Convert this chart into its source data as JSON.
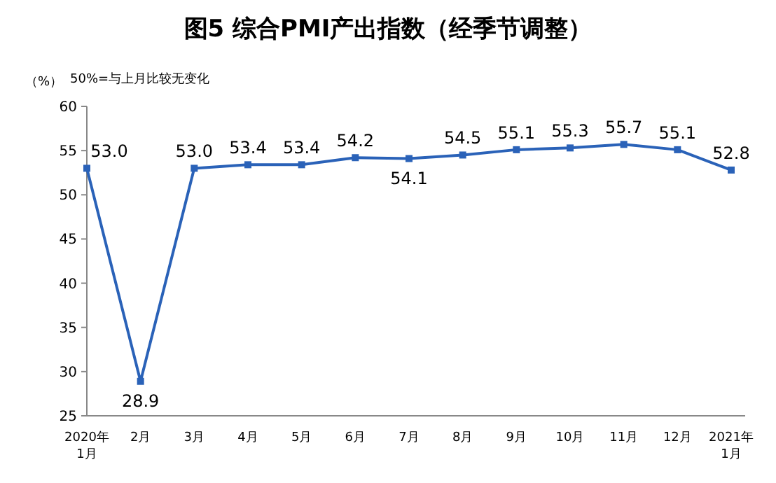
{
  "chart_data": {
    "type": "line",
    "title": "图5  综合PMI产出指数（经季节调整）",
    "ylabel": "（%）",
    "annotations": [
      "50%=与上月比较无变化"
    ],
    "categories": [
      "2020年\n1月",
      "2月",
      "3月",
      "4月",
      "5月",
      "6月",
      "7月",
      "8月",
      "9月",
      "10月",
      "11月",
      "12月",
      "2021年\n1月"
    ],
    "series": [
      {
        "color": "#2a62b8",
        "values": [
          53.0,
          28.9,
          53.0,
          53.4,
          53.4,
          54.2,
          54.1,
          54.5,
          55.1,
          55.3,
          55.7,
          55.1,
          52.8
        ],
        "value_labels": [
          "53.0",
          "28.9",
          "53.0",
          "53.4",
          "53.4",
          "54.2",
          "54.1",
          "54.5",
          "55.1",
          "55.3",
          "55.7",
          "55.1",
          "52.8"
        ]
      }
    ],
    "ylim": [
      25,
      60
    ],
    "yticks": [
      25,
      30,
      35,
      40,
      45,
      50,
      55,
      60
    ],
    "grid": false,
    "marker": "square",
    "line_style": "solid"
  }
}
